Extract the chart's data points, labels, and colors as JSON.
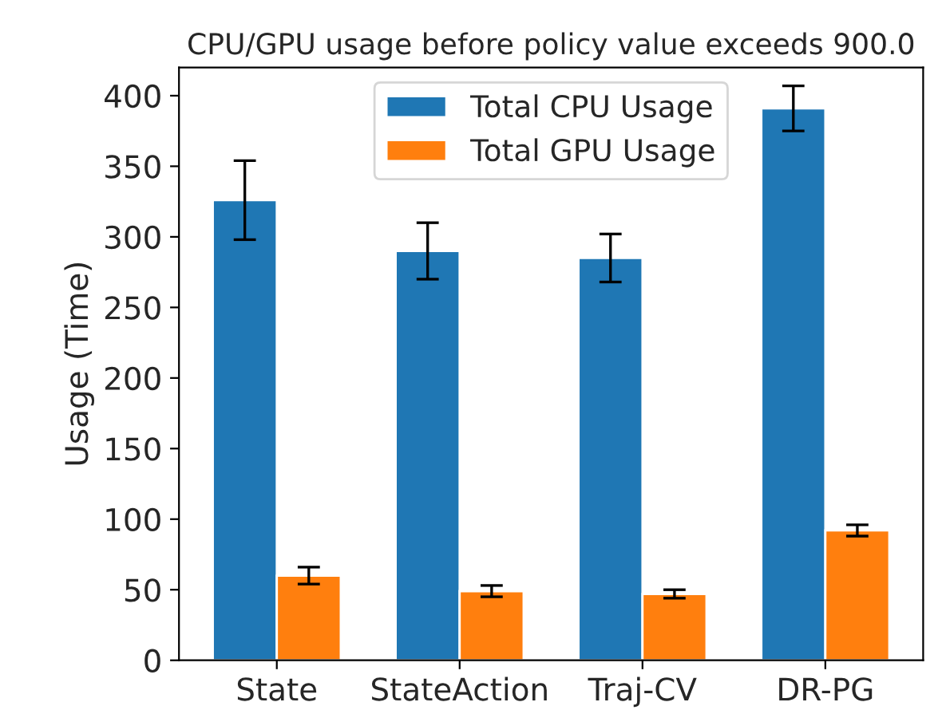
{
  "chart_data": {
    "type": "bar",
    "title": "CPU/GPU usage before policy value exceeds 900.0",
    "ylabel": "Usage (Time)",
    "categories": [
      "State",
      "StateAction",
      "Traj-CV",
      "DR-PG"
    ],
    "series": [
      {
        "name": "Total CPU Usage",
        "color": "#1f77b4",
        "values": [
          326,
          290,
          285,
          391
        ],
        "errors": [
          28,
          20,
          17,
          16
        ]
      },
      {
        "name": "Total GPU Usage",
        "color": "#ff7f0e",
        "values": [
          60,
          49,
          47,
          92
        ],
        "errors": [
          6,
          4,
          3,
          4
        ]
      }
    ],
    "ylim": [
      0,
      420
    ],
    "yticks": [
      0,
      50,
      100,
      150,
      200,
      250,
      300,
      350,
      400
    ],
    "legend": "top",
    "grid": false
  }
}
